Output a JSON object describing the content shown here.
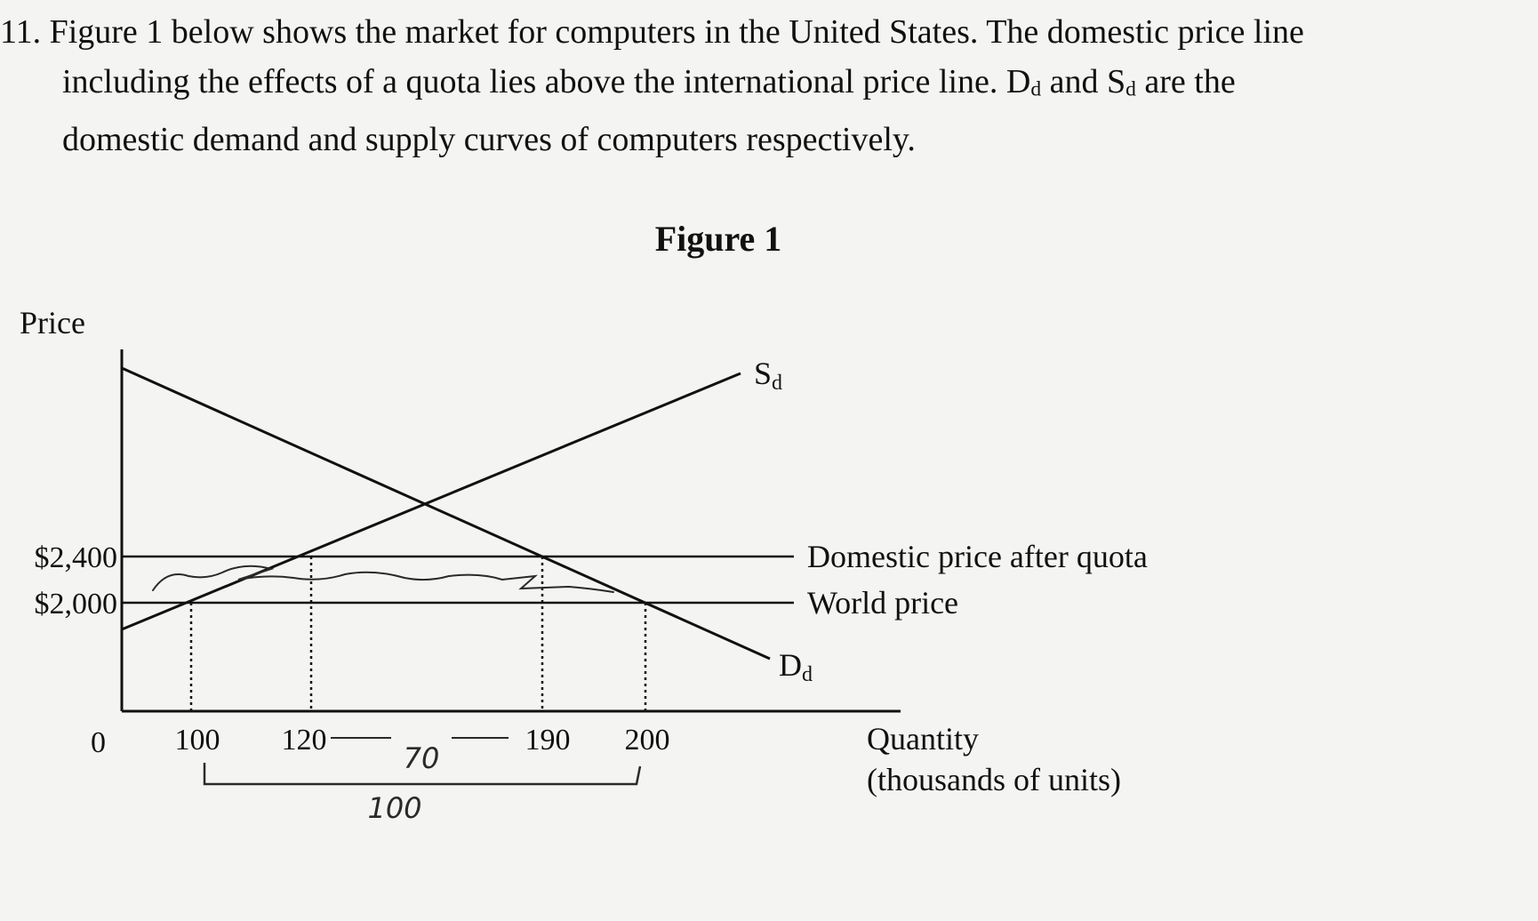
{
  "question": {
    "line1": "11. Figure 1 below shows the market for computers in the United States. The domestic price line",
    "line2a": "including the effects of a quota lies above the international price line. ",
    "dd_main": "D",
    "dd_sub": "d",
    "and": " and ",
    "sd_main": "S",
    "sd_sub": "d",
    "line2b": " are the",
    "line3": "domestic demand and supply curves of computers respectively."
  },
  "chart_data": {
    "type": "line",
    "title": "Figure 1",
    "ylabel": "Price",
    "xlabel": [
      "Quantity",
      "(thousands of units)"
    ],
    "origin_label": "0",
    "x_ticks": [
      100,
      120,
      190,
      200
    ],
    "y_ticks": [
      {
        "value": 2000,
        "label": "$2,000"
      },
      {
        "value": 2400,
        "label": "$2,400"
      }
    ],
    "series": [
      {
        "name": "S",
        "subscript": "d",
        "kind": "supply",
        "points": [
          [
            0,
            1700
          ],
          [
            100,
            2000
          ],
          [
            120,
            2400
          ],
          [
            330,
            3900
          ]
        ]
      },
      {
        "name": "D",
        "subscript": "d",
        "kind": "demand",
        "points": [
          [
            0,
            3400
          ],
          [
            190,
            2400
          ],
          [
            200,
            2000
          ],
          [
            330,
            1500
          ]
        ]
      }
    ],
    "price_lines": [
      {
        "value": 2400,
        "label": "Domestic price after quota"
      },
      {
        "value": 2000,
        "label": "World price"
      }
    ],
    "dotted_guides": [
      100,
      120,
      190,
      200
    ],
    "annotations": [
      {
        "text": "70",
        "style": "handwritten"
      },
      {
        "text": "100",
        "style": "handwritten"
      }
    ],
    "grid": false,
    "legend": "none"
  },
  "colors": {
    "ink": "#111111",
    "pencil": "#2a2a2a",
    "paper": "#f4f4f2"
  }
}
